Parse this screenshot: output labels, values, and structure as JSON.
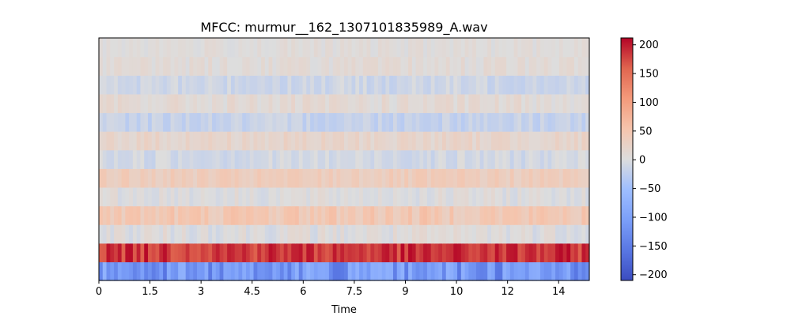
{
  "chart_data": {
    "type": "heatmap",
    "title": "MFCC: murmur__162_1307101835989_A.wav",
    "xlabel": "Time",
    "ylabel": "",
    "xlim": [
      0,
      14.4
    ],
    "x_ticks": [
      "0",
      "1.5",
      "3",
      "4.5",
      "6",
      "7.5",
      "9",
      "10",
      "12",
      "14"
    ],
    "x_tick_values": [
      0,
      1.5,
      3,
      4.5,
      6,
      7.5,
      9,
      10.5,
      12,
      13.5
    ],
    "n_coefficients": 13,
    "n_frames": 130,
    "colormap": "coolwarm",
    "colorbar": {
      "range": [
        -210,
        212
      ],
      "ticks": [
        "200",
        "150",
        "100",
        "50",
        "0",
        "−50",
        "−100",
        "−150",
        "−200"
      ],
      "tick_values": [
        200,
        150,
        100,
        50,
        0,
        -50,
        -100,
        -150,
        -200
      ]
    },
    "row_means_bottom_to_top": [
      -115,
      185,
      3,
      45,
      2,
      35,
      -8,
      20,
      -18,
      10,
      -12,
      8,
      5
    ],
    "row_spread_bottom_to_top": [
      45,
      25,
      15,
      18,
      12,
      12,
      12,
      12,
      12,
      12,
      12,
      10,
      8
    ]
  }
}
